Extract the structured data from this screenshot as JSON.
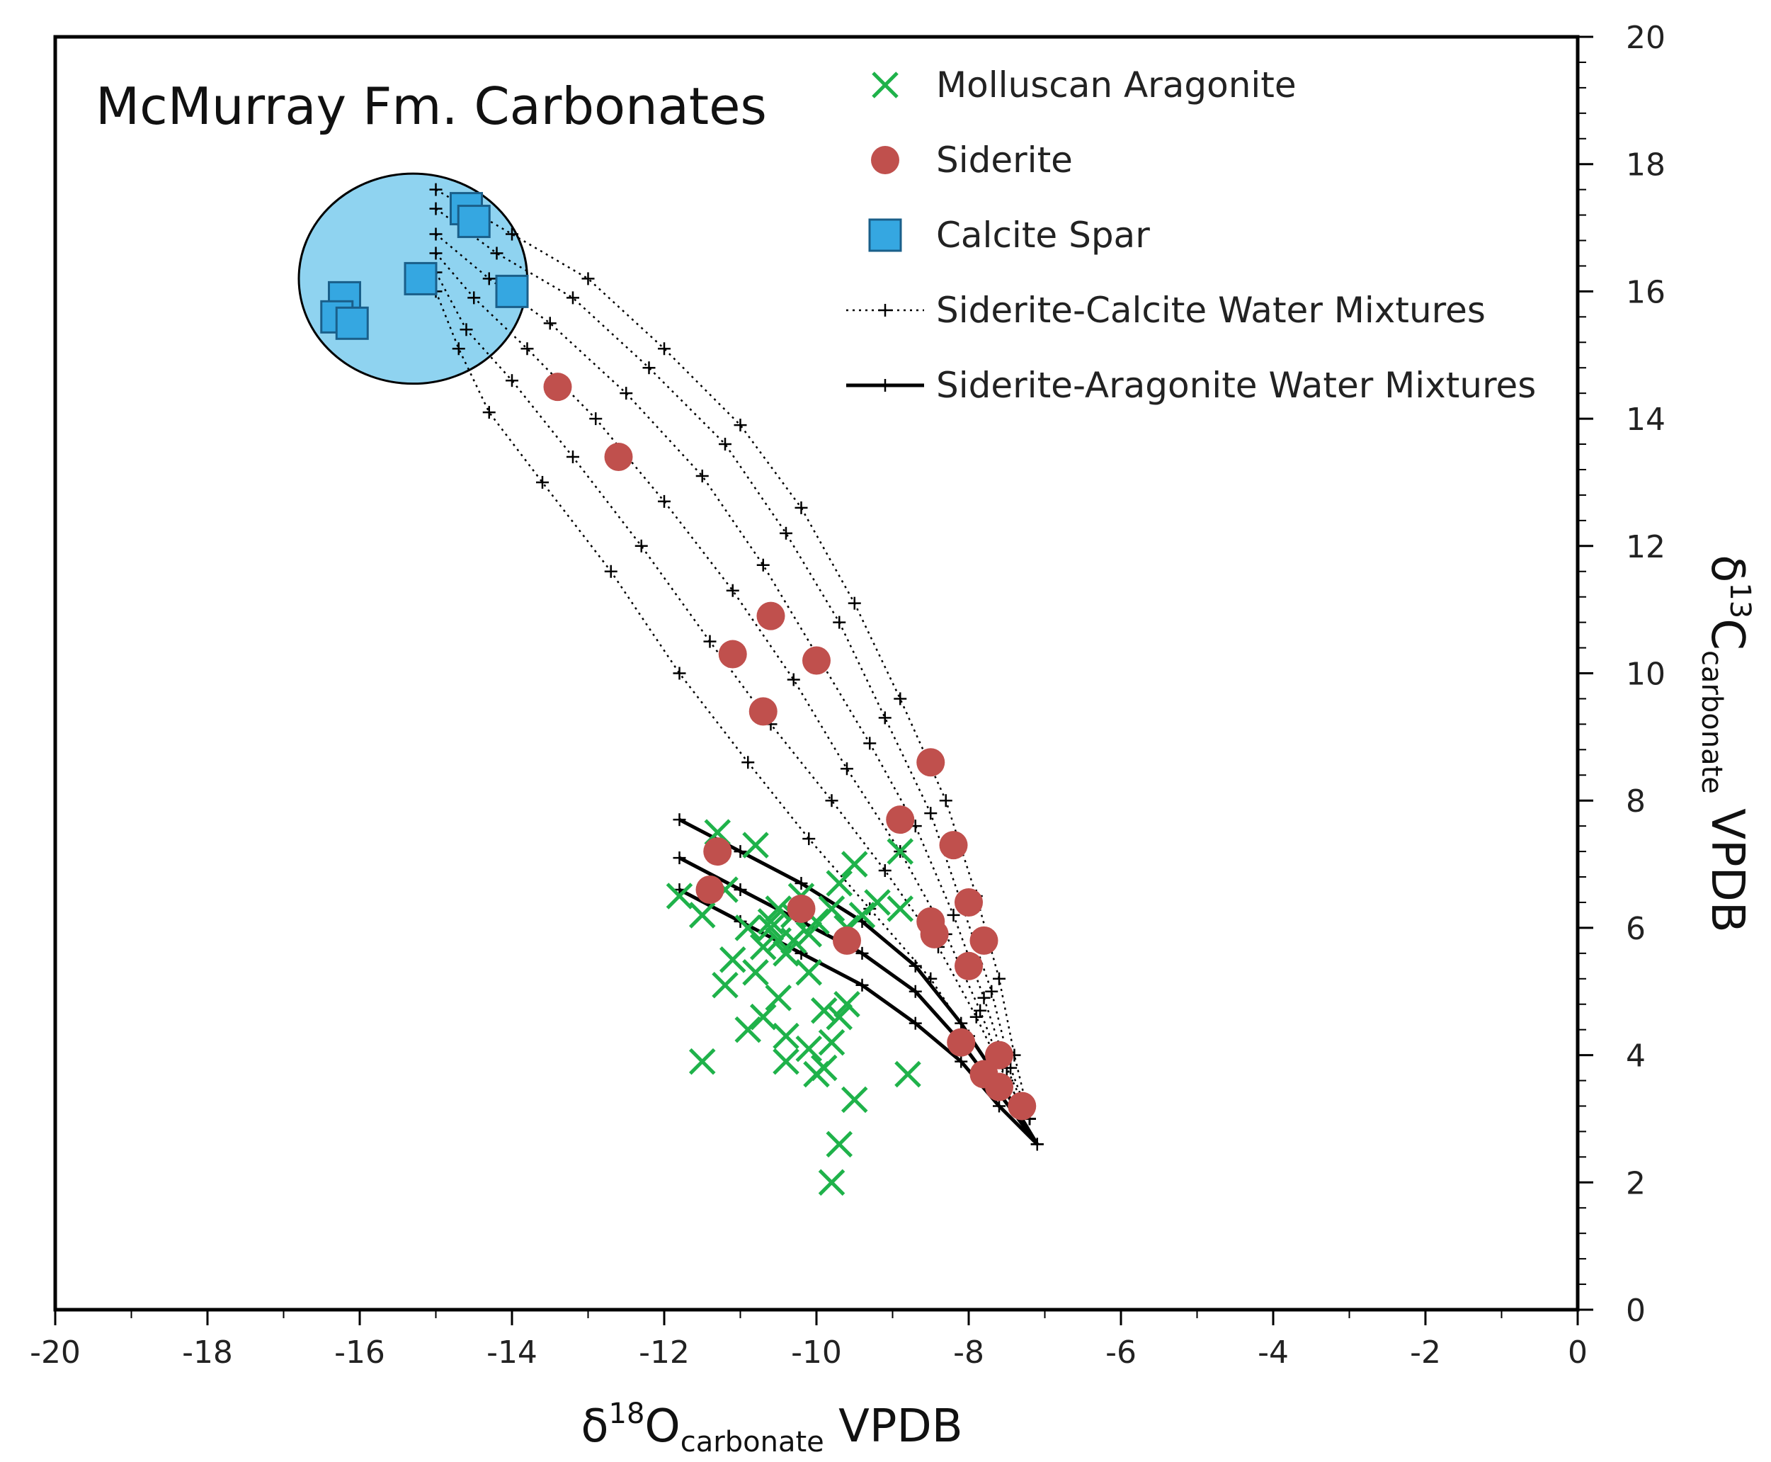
{
  "chart_data": {
    "type": "scatter",
    "title": "McMurray Fm. Carbonates",
    "xlabel": {
      "prefix": "δ",
      "sup": "18",
      "element": "O",
      "sub": "carbonate",
      "suffix": " VPDB"
    },
    "ylabel": {
      "prefix": "δ",
      "sup": "13",
      "element": "C",
      "sub": "carbonate",
      "suffix": " VPDB"
    },
    "xlim": [
      -20,
      0
    ],
    "ylim": [
      0,
      20
    ],
    "x_ticks": [
      -20,
      -18,
      -16,
      -14,
      -12,
      -10,
      -8,
      -6,
      -4,
      -2,
      0
    ],
    "y_ticks": [
      0,
      2,
      4,
      6,
      8,
      10,
      12,
      14,
      16,
      18,
      20
    ],
    "y_axis_side": "right",
    "legend_position": "top-right",
    "legend": [
      {
        "label": "Molluscan Aragonite",
        "marker": "x",
        "color": "#1fb24a"
      },
      {
        "label": "Siderite",
        "marker": "circle",
        "color": "#c0504d"
      },
      {
        "label": "Calcite Spar",
        "marker": "square",
        "color": "#35a7e1"
      },
      {
        "label": "Siderite-Calcite Water Mixtures",
        "marker": "dotted-line-plus",
        "color": "#000000"
      },
      {
        "label": "Siderite-Aragonite Water Mixtures",
        "marker": "solid-line-plus",
        "color": "#000000"
      }
    ],
    "calcite_field": {
      "center": [
        -15.3,
        16.2
      ],
      "radius": [
        1.5,
        1.65
      ],
      "color": "#8fd3f0"
    },
    "series": [
      {
        "name": "Molluscan Aragonite",
        "color": "#1fb24a",
        "marker": "x",
        "points": [
          [
            -11.3,
            7.5
          ],
          [
            -10.8,
            7.3
          ],
          [
            -9.7,
            6.7
          ],
          [
            -9.5,
            7.0
          ],
          [
            -8.9,
            7.2
          ],
          [
            -11.8,
            6.5
          ],
          [
            -11.5,
            6.2
          ],
          [
            -11.2,
            6.6
          ],
          [
            -10.9,
            6.0
          ],
          [
            -10.6,
            6.1
          ],
          [
            -10.5,
            5.8
          ],
          [
            -10.3,
            6.2
          ],
          [
            -10.2,
            6.5
          ],
          [
            -10.1,
            5.9
          ],
          [
            -10.0,
            6.1
          ],
          [
            -9.8,
            6.3
          ],
          [
            -9.6,
            6.0
          ],
          [
            -9.4,
            6.2
          ],
          [
            -9.2,
            6.4
          ],
          [
            -8.9,
            6.3
          ],
          [
            -10.7,
            5.7
          ],
          [
            -10.4,
            5.6
          ],
          [
            -10.6,
            6.0
          ],
          [
            -10.3,
            5.8
          ],
          [
            -10.5,
            6.3
          ],
          [
            -11.1,
            5.5
          ],
          [
            -10.8,
            5.3
          ],
          [
            -10.1,
            5.3
          ],
          [
            -11.2,
            5.1
          ],
          [
            -10.5,
            4.9
          ],
          [
            -10.7,
            4.6
          ],
          [
            -9.9,
            4.7
          ],
          [
            -9.6,
            4.8
          ],
          [
            -10.9,
            4.4
          ],
          [
            -10.4,
            4.3
          ],
          [
            -10.1,
            4.1
          ],
          [
            -9.8,
            4.2
          ],
          [
            -9.7,
            4.6
          ],
          [
            -10.4,
            3.9
          ],
          [
            -10.0,
            3.7
          ],
          [
            -9.9,
            3.8
          ],
          [
            -11.5,
            3.9
          ],
          [
            -8.8,
            3.7
          ],
          [
            -9.5,
            3.3
          ],
          [
            -9.7,
            2.6
          ],
          [
            -9.8,
            2.0
          ]
        ]
      },
      {
        "name": "Siderite",
        "color": "#c0504d",
        "marker": "circle",
        "points": [
          [
            -13.4,
            14.5
          ],
          [
            -12.6,
            13.4
          ],
          [
            -10.6,
            10.9
          ],
          [
            -11.1,
            10.3
          ],
          [
            -10.0,
            10.2
          ],
          [
            -10.7,
            9.4
          ],
          [
            -8.5,
            8.6
          ],
          [
            -8.9,
            7.7
          ],
          [
            -8.2,
            7.3
          ],
          [
            -11.3,
            7.2
          ],
          [
            -11.4,
            6.6
          ],
          [
            -8.0,
            6.4
          ],
          [
            -10.2,
            6.3
          ],
          [
            -8.5,
            6.1
          ],
          [
            -8.45,
            5.9
          ],
          [
            -9.6,
            5.8
          ],
          [
            -7.8,
            5.8
          ],
          [
            -8.0,
            5.4
          ],
          [
            -8.1,
            4.2
          ],
          [
            -7.6,
            4.0
          ],
          [
            -7.8,
            3.7
          ],
          [
            -7.6,
            3.5
          ],
          [
            -7.3,
            3.2
          ]
        ]
      },
      {
        "name": "Calcite Spar",
        "color": "#35a7e1",
        "marker": "square",
        "points": [
          [
            -14.6,
            17.3
          ],
          [
            -14.5,
            17.1
          ],
          [
            -15.2,
            16.2
          ],
          [
            -14.0,
            16.0
          ],
          [
            -16.2,
            15.9
          ],
          [
            -16.3,
            15.6
          ],
          [
            -16.1,
            15.5
          ]
        ]
      }
    ],
    "mixing_curves": {
      "siderite_calcite": {
        "style": "dotted",
        "color": "#000000",
        "curves": [
          [
            [
              -15.0,
              17.6
            ],
            [
              -14.0,
              16.9
            ],
            [
              -13.0,
              16.2
            ],
            [
              -12.0,
              15.1
            ],
            [
              -11.0,
              13.9
            ],
            [
              -10.2,
              12.6
            ],
            [
              -9.5,
              11.1
            ],
            [
              -8.9,
              9.6
            ],
            [
              -8.3,
              8.0
            ],
            [
              -7.9,
              6.5
            ],
            [
              -7.6,
              5.2
            ],
            [
              -7.4,
              4.0
            ],
            [
              -7.2,
              3.0
            ]
          ],
          [
            [
              -15.0,
              17.3
            ],
            [
              -14.2,
              16.6
            ],
            [
              -13.2,
              15.9
            ],
            [
              -12.2,
              14.8
            ],
            [
              -11.2,
              13.6
            ],
            [
              -10.4,
              12.2
            ],
            [
              -9.7,
              10.8
            ],
            [
              -9.1,
              9.3
            ],
            [
              -8.5,
              7.8
            ],
            [
              -8.1,
              6.4
            ],
            [
              -7.7,
              5.0
            ],
            [
              -7.45,
              3.8
            ],
            [
              -7.2,
              3.0
            ]
          ],
          [
            [
              -15.0,
              16.9
            ],
            [
              -14.3,
              16.2
            ],
            [
              -13.5,
              15.5
            ],
            [
              -12.5,
              14.4
            ],
            [
              -11.5,
              13.1
            ],
            [
              -10.7,
              11.7
            ],
            [
              -10.0,
              10.3
            ],
            [
              -9.3,
              8.9
            ],
            [
              -8.7,
              7.6
            ],
            [
              -8.2,
              6.2
            ],
            [
              -7.8,
              4.9
            ],
            [
              -7.5,
              3.8
            ],
            [
              -7.2,
              3.0
            ]
          ],
          [
            [
              -15.0,
              16.6
            ],
            [
              -14.5,
              15.9
            ],
            [
              -13.8,
              15.1
            ],
            [
              -12.9,
              14.0
            ],
            [
              -12.0,
              12.7
            ],
            [
              -11.1,
              11.3
            ],
            [
              -10.3,
              9.9
            ],
            [
              -9.6,
              8.5
            ],
            [
              -8.9,
              7.2
            ],
            [
              -8.3,
              5.9
            ],
            [
              -7.85,
              4.7
            ],
            [
              -7.5,
              3.6
            ],
            [
              -7.2,
              3.0
            ]
          ],
          [
            [
              -15.0,
              16.3
            ],
            [
              -14.6,
              15.4
            ],
            [
              -14.0,
              14.6
            ],
            [
              -13.2,
              13.4
            ],
            [
              -12.3,
              12.0
            ],
            [
              -11.4,
              10.5
            ],
            [
              -10.6,
              9.2
            ],
            [
              -9.8,
              8.0
            ],
            [
              -9.1,
              6.9
            ],
            [
              -8.4,
              5.7
            ],
            [
              -7.9,
              4.6
            ],
            [
              -7.5,
              3.6
            ],
            [
              -7.2,
              3.0
            ]
          ],
          [
            [
              -15.0,
              16.0
            ],
            [
              -14.7,
              15.1
            ],
            [
              -14.3,
              14.1
            ],
            [
              -13.6,
              13.0
            ],
            [
              -12.7,
              11.6
            ],
            [
              -11.8,
              10.0
            ],
            [
              -10.9,
              8.6
            ],
            [
              -10.1,
              7.4
            ],
            [
              -9.3,
              6.3
            ],
            [
              -8.5,
              5.2
            ],
            [
              -8.0,
              4.3
            ],
            [
              -7.5,
              3.5
            ],
            [
              -7.2,
              3.0
            ]
          ]
        ]
      },
      "siderite_aragonite": {
        "style": "solid",
        "color": "#000000",
        "curves": [
          [
            [
              -11.8,
              7.7
            ],
            [
              -11.0,
              7.2
            ],
            [
              -10.2,
              6.7
            ],
            [
              -9.4,
              6.1
            ],
            [
              -8.7,
              5.4
            ],
            [
              -8.1,
              4.5
            ],
            [
              -7.6,
              3.6
            ],
            [
              -7.1,
              2.6
            ]
          ],
          [
            [
              -11.8,
              7.1
            ],
            [
              -11.0,
              6.6
            ],
            [
              -10.2,
              6.1
            ],
            [
              -9.4,
              5.6
            ],
            [
              -8.7,
              5.0
            ],
            [
              -8.1,
              4.2
            ],
            [
              -7.6,
              3.4
            ],
            [
              -7.1,
              2.6
            ]
          ],
          [
            [
              -11.8,
              6.6
            ],
            [
              -11.0,
              6.1
            ],
            [
              -10.2,
              5.6
            ],
            [
              -9.4,
              5.1
            ],
            [
              -8.7,
              4.5
            ],
            [
              -8.1,
              3.9
            ],
            [
              -7.6,
              3.2
            ],
            [
              -7.1,
              2.6
            ]
          ]
        ]
      }
    }
  }
}
